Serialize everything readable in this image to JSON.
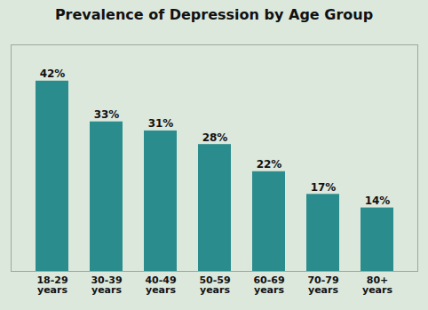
{
  "chart_data": {
    "type": "bar",
    "title": "Prevalence of Depression by Age Group",
    "categories": [
      "18-29\nyears",
      "30-39\nyears",
      "40-49\nyears",
      "50-59\nyears",
      "60-69\nyears",
      "70-79\nyears",
      "80+\nyears"
    ],
    "values": [
      42,
      33,
      31,
      28,
      22,
      17,
      14
    ],
    "value_labels": [
      "42%",
      "33%",
      "31%",
      "28%",
      "22%",
      "17%",
      "14%"
    ],
    "data_labels": true,
    "color": "#2a8c8c",
    "ylim": [
      0,
      50
    ],
    "grid": false,
    "tick_labels": "x"
  }
}
